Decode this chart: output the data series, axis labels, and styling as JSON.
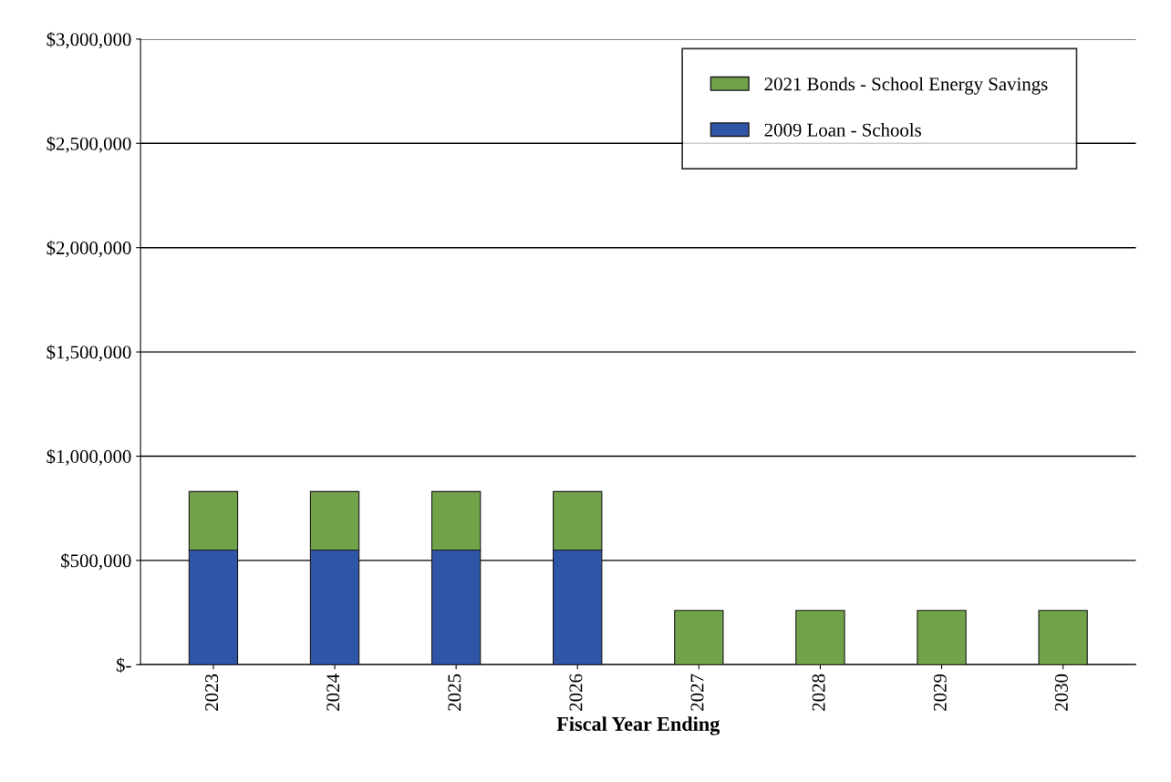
{
  "chart_data": {
    "type": "bar",
    "stacked": true,
    "xlabel": "Fiscal Year Ending",
    "categories": [
      "2023",
      "2024",
      "2025",
      "2026",
      "2027",
      "2028",
      "2029",
      "2030"
    ],
    "series": [
      {
        "name": "2009 Loan - Schools",
        "color": "#2f55a6",
        "values": [
          550000,
          550000,
          550000,
          550000,
          null,
          null,
          null,
          null
        ]
      },
      {
        "name": "2021 Bonds - School Energy Savings",
        "color": "#72a34a",
        "values": [
          280000,
          280000,
          280000,
          280000,
          260000,
          260000,
          260000,
          260000
        ]
      }
    ],
    "ylim": [
      0,
      3000000
    ],
    "yticks": [
      {
        "value": 0,
        "label": "$-"
      },
      {
        "value": 500000,
        "label": "$500,000"
      },
      {
        "value": 1000000,
        "label": "$1,000,000"
      },
      {
        "value": 1500000,
        "label": "$1,500,000"
      },
      {
        "value": 2000000,
        "label": "$2,000,000"
      },
      {
        "value": 2500000,
        "label": "$2,500,000"
      },
      {
        "value": 3000000,
        "label": "$3,000,000"
      }
    ],
    "grid": "y",
    "legend": "top right"
  }
}
